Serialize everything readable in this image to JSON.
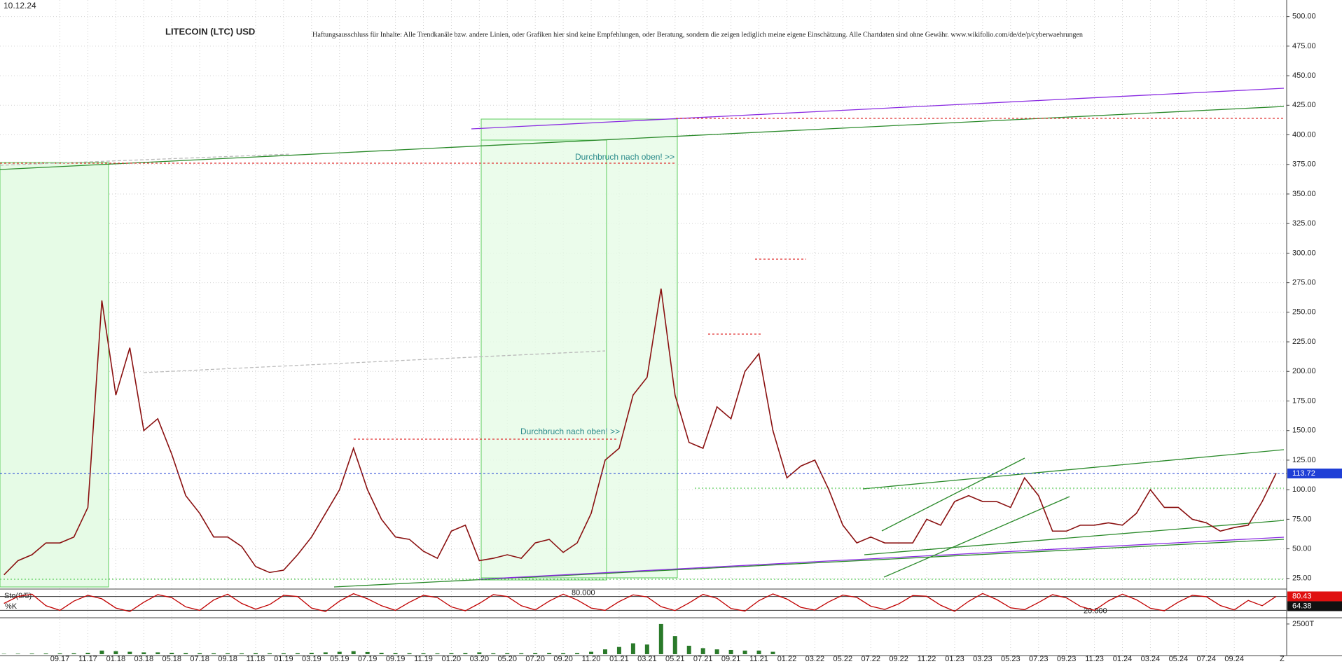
{
  "chart_data": {
    "type": "line",
    "title": "LITECOIN (LTC) USD",
    "date": "10.12.24",
    "subtitle": "Haftungsausschluss für Inhalte: Alle Trendkanäle bzw. andere Linien, oder Grafiken hier sind keine Empfehlungen, oder Beratung, sondern die zeigen lediglich meine eigene Einschätzung. Alle Chartdaten sind ohne Gewähr.  www.wikifolio.com/de/de/p/cyberwaehrungen",
    "annotations": [
      "Durchbruch nach oben! >>",
      "Durchbruch nach oben! >>"
    ],
    "end_label": "Z",
    "categories": [
      null,
      null,
      null,
      null,
      "09.17",
      null,
      "11.17",
      null,
      "01.18",
      null,
      "03.18",
      null,
      "05.18",
      null,
      "07.18",
      null,
      "09.18",
      null,
      "11.18",
      null,
      "01.19",
      null,
      "03.19",
      null,
      "05.19",
      null,
      "07.19",
      null,
      "09.19",
      null,
      "11.19",
      null,
      "01.20",
      null,
      "03.20",
      null,
      "05.20",
      null,
      "07.20",
      null,
      "09.20",
      null,
      "11.20",
      null,
      "01.21",
      null,
      "03.21",
      null,
      "05.21",
      null,
      "07.21",
      null,
      "09.21",
      null,
      "11.21",
      null,
      "01.22",
      null,
      "03.22",
      null,
      "05.22",
      null,
      "07.22",
      null,
      "09.22",
      null,
      "11.22",
      null,
      "01.23",
      null,
      "03.23",
      null,
      "05.23",
      null,
      "07.23",
      null,
      "09.23",
      null,
      "11.23",
      null,
      "01.24",
      null,
      "03.24",
      null,
      "05.24",
      null,
      "07.24",
      null,
      "09.24",
      null,
      null,
      null
    ],
    "values": [
      28,
      40,
      45,
      55,
      55,
      60,
      85,
      260,
      180,
      220,
      150,
      160,
      130,
      95,
      80,
      60,
      60,
      52,
      35,
      30,
      32,
      45,
      60,
      80,
      100,
      135,
      100,
      75,
      60,
      58,
      48,
      42,
      65,
      70,
      40,
      42,
      45,
      42,
      55,
      58,
      47,
      55,
      80,
      125,
      135,
      180,
      195,
      270,
      180,
      140,
      135,
      170,
      160,
      200,
      215,
      150,
      110,
      120,
      125,
      100,
      70,
      55,
      60,
      55,
      55,
      55,
      75,
      70,
      90,
      95,
      90,
      90,
      85,
      110,
      95,
      65,
      65,
      70,
      70,
      72,
      70,
      80,
      100,
      85,
      85,
      75,
      72,
      65,
      68,
      70,
      90,
      114
    ],
    "color": "#8a1010",
    "last_price": 113.72,
    "last_price_color": "#1f3fd6",
    "ylim": [
      16,
      514
    ],
    "yticks": [
      {
        "value": 25,
        "label": "25.00"
      },
      {
        "value": 50,
        "label": "50.00"
      },
      {
        "value": 75,
        "label": "75.00"
      },
      {
        "value": 100,
        "label": "100.00"
      },
      {
        "value": 125,
        "label": "125.00"
      },
      {
        "value": 150,
        "label": "150.00"
      },
      {
        "value": 175,
        "label": "175.00"
      },
      {
        "value": 200,
        "label": "200.00"
      },
      {
        "value": 225,
        "label": "225.00"
      },
      {
        "value": 250,
        "label": "250.00"
      },
      {
        "value": 275,
        "label": "275.00"
      },
      {
        "value": 300,
        "label": "300.00"
      },
      {
        "value": 325,
        "label": "325.00"
      },
      {
        "value": 350,
        "label": "350.00"
      },
      {
        "value": 375,
        "label": "375.00"
      },
      {
        "value": 400,
        "label": "400.00"
      },
      {
        "value": 425,
        "label": "425.00"
      },
      {
        "value": 450,
        "label": "450.00"
      },
      {
        "value": 475,
        "label": "475.00"
      },
      {
        "value": 500,
        "label": "500.00"
      }
    ],
    "grid": true,
    "stochastic": {
      "name": "Sto(9/5)",
      "k_label": "%K",
      "color": "#c00000",
      "values": [
        50,
        80,
        90,
        40,
        20,
        60,
        85,
        70,
        30,
        15,
        55,
        88,
        75,
        35,
        20,
        65,
        90,
        50,
        25,
        45,
        85,
        80,
        30,
        15,
        60,
        92,
        70,
        40,
        20,
        55,
        85,
        75,
        35,
        18,
        50,
        88,
        80,
        40,
        22,
        60,
        90,
        65,
        30,
        20,
        58,
        87,
        78,
        36,
        19,
        52,
        89,
        72,
        28,
        17,
        62,
        91,
        69,
        33,
        21,
        57,
        86,
        76,
        38,
        24,
        48,
        84,
        81,
        42,
        16,
        59,
        93,
        67,
        31,
        23,
        54,
        88,
        74,
        37,
        20,
        61,
        90,
        66,
        29,
        18,
        56,
        85,
        79,
        41,
        22,
        63,
        40,
        80.43
      ],
      "d_value": 64.38,
      "ylim": [
        0,
        100
      ],
      "levels": [
        {
          "value": 80,
          "label": "80.000"
        },
        {
          "value": 20,
          "label": "20.000"
        }
      ]
    },
    "volume": {
      "color": "#2a7a2a",
      "values": [
        30,
        40,
        50,
        60,
        70,
        80,
        120,
        300,
        250,
        200,
        150,
        150,
        120,
        100,
        90,
        80,
        80,
        70,
        90,
        80,
        80,
        90,
        120,
        150,
        200,
        250,
        180,
        120,
        100,
        90,
        80,
        70,
        90,
        100,
        150,
        80,
        90,
        80,
        100,
        110,
        90,
        100,
        200,
        400,
        600,
        900,
        800,
        2500,
        1500,
        700,
        500,
        400,
        350,
        300,
        300,
        200,
        null,
        null,
        null,
        null,
        null,
        null,
        null,
        null,
        null,
        null,
        null,
        null,
        null,
        null,
        null,
        null,
        null,
        null,
        null,
        null,
        null,
        null,
        null,
        null,
        null,
        null,
        null,
        null,
        null,
        null,
        null,
        null,
        null,
        null,
        null,
        null
      ],
      "ylim": [
        0,
        2900
      ],
      "yticks": [
        {
          "value": 2500,
          "label": "2500T"
        }
      ]
    }
  }
}
